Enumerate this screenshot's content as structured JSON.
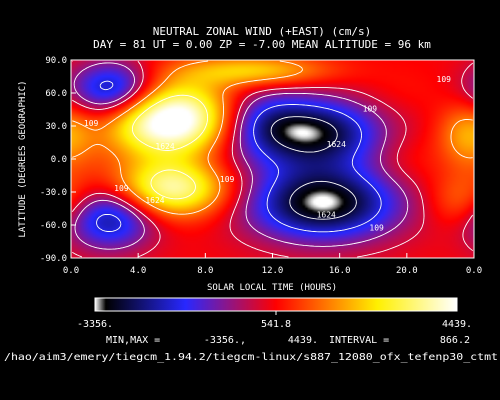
{
  "chart_data": {
    "type": "heatmap",
    "title": "NEUTRAL ZONAL WIND (+EAST) (cm/s)",
    "subtitle": "DAY =  81  UT =  0.00  ZP =  -7.00  MEAN ALTITUDE =  96 km",
    "xlabel": "SOLAR LOCAL TIME (HOURS)",
    "ylabel": "LATITUDE (DEGREES GEOGRAPHIC)",
    "x_ticks": [
      "0.0",
      "4.0",
      "8.0",
      "12.0",
      "16.0",
      "20.0",
      "0.0"
    ],
    "y_ticks": [
      "90.0",
      "60.0",
      "30.0",
      "0.0",
      "-30.0",
      "-60.0",
      "-90.0"
    ],
    "xlim": [
      0,
      24
    ],
    "ylim": [
      -90,
      90
    ],
    "colorbar": {
      "min_label": "-3356.",
      "mid_label": "541.8",
      "max_label": "4439.",
      "min": -3356,
      "max": 4439,
      "mid": 541.8,
      "colors": [
        "#ffffff",
        "#000000",
        "#0000ff",
        "#ff0000",
        "#ffff00",
        "#ffffff"
      ]
    },
    "contour_labels": [
      {
        "text": "109",
        "lt": 1.2,
        "lat": 30
      },
      {
        "text": "109",
        "lt": 17.8,
        "lat": 43
      },
      {
        "text": "109",
        "lt": 22.2,
        "lat": 70
      },
      {
        "text": "109",
        "lt": 3.0,
        "lat": -29
      },
      {
        "text": "109",
        "lt": 9.3,
        "lat": -21
      },
      {
        "text": "109",
        "lt": 18.2,
        "lat": -65
      },
      {
        "text": "1624",
        "lt": 15.8,
        "lat": 11
      },
      {
        "text": "1624",
        "lt": 15.2,
        "lat": -53
      },
      {
        "text": "1624",
        "lt": 5.6,
        "lat": 9
      },
      {
        "text": "1624",
        "lt": 5.0,
        "lat": -40
      }
    ],
    "features": [
      {
        "lt": 2.5,
        "lat": 63,
        "value": -2400,
        "rx": 1.8,
        "ry": 18
      },
      {
        "lt": 2.3,
        "lat": -54,
        "value": -2200,
        "rx": 1.9,
        "ry": 20
      },
      {
        "lt": 14.5,
        "lat": 24,
        "value": -2900,
        "rx": 2.8,
        "ry": 22
      },
      {
        "lt": 15.0,
        "lat": -40,
        "value": -3356,
        "rx": 3.2,
        "ry": 24
      },
      {
        "lt": 11.0,
        "lat": 35,
        "value": -1100,
        "rx": 2.0,
        "ry": 22
      },
      {
        "lt": 6.5,
        "lat": 37,
        "value": 4439,
        "rx": 2.6,
        "ry": 24
      },
      {
        "lt": 6.0,
        "lat": -27,
        "value": 3900,
        "rx": 2.4,
        "ry": 18
      },
      {
        "lt": 4.5,
        "lat": 30,
        "value": 1600,
        "rx": 2.2,
        "ry": 20
      },
      {
        "lt": 23.6,
        "lat": 22,
        "value": 2000,
        "rx": 1.2,
        "ry": 20
      },
      {
        "lt": 23.3,
        "lat": -38,
        "value": 1700,
        "rx": 1.4,
        "ry": 18
      },
      {
        "lt": 20.0,
        "lat": -3,
        "value": 900,
        "rx": 1.6,
        "ry": 18
      },
      {
        "lt": 9.0,
        "lat": 0,
        "value": 200,
        "rx": 2.0,
        "ry": 14
      },
      {
        "lt": 11.0,
        "lat": 80,
        "value": 2500,
        "rx": 3.0,
        "ry": 10
      },
      {
        "lt": 19.5,
        "lat": 60,
        "value": 700,
        "rx": 2.0,
        "ry": 16
      },
      {
        "lt": 0.8,
        "lat": 0,
        "value": 600,
        "rx": 1.3,
        "ry": 16
      }
    ],
    "background_value": 500,
    "contour_levels": [
      -2700,
      -1624,
      -500,
      109,
      1624,
      3200
    ]
  },
  "footer": {
    "minmax_label": "MIN,MAX =",
    "min_value": "-3356.,",
    "max_value": "4439.",
    "interval_label": "INTERVAL =",
    "interval_value": "866.2",
    "path": "/hao/aim3/emery/tiegcm_1.94.2/tiegcm-linux/s887_12080_ofx_tefenp30_ctmt"
  }
}
